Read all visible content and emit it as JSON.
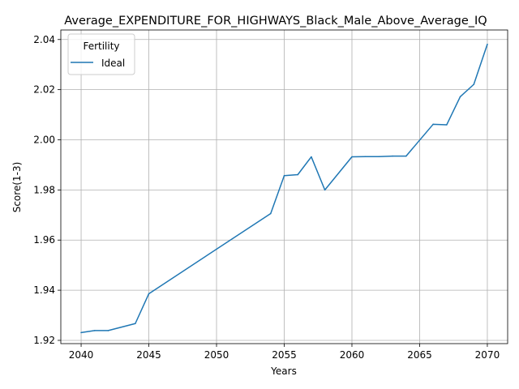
{
  "chart_data": {
    "type": "line",
    "title": "Average_EXPENDITURE_FOR_HIGHWAYS_Black_Male_Above_Average_IQ",
    "xlabel": "Years",
    "ylabel": "Score(1-3)",
    "xlim": [
      2038.5,
      2071.5
    ],
    "ylim": [
      1.9187,
      2.0438
    ],
    "xticks": [
      2040,
      2045,
      2050,
      2055,
      2060,
      2065,
      2070
    ],
    "yticks": [
      1.92,
      1.94,
      1.96,
      1.98,
      2.0,
      2.02,
      2.04
    ],
    "ytick_labels": [
      "1.92",
      "1.94",
      "1.96",
      "1.98",
      "2.00",
      "2.02",
      "2.04"
    ],
    "grid": true,
    "legend": {
      "title": "Fertility",
      "position": "top-left"
    },
    "series": [
      {
        "name": "Ideal",
        "color": "#1f77b4",
        "x": [
          2040,
          2041,
          2042,
          2044,
          2045,
          2054,
          2055,
          2056,
          2057,
          2058,
          2060,
          2061,
          2062,
          2063,
          2064,
          2066,
          2067,
          2068,
          2069,
          2070
        ],
        "y": [
          1.9231,
          1.9239,
          1.9239,
          1.9267,
          1.9386,
          1.9706,
          1.9857,
          1.9861,
          1.9932,
          1.98,
          1.9932,
          1.9933,
          1.9933,
          1.9935,
          1.9935,
          2.0062,
          2.006,
          2.0172,
          2.0221,
          2.0381
        ]
      }
    ]
  }
}
